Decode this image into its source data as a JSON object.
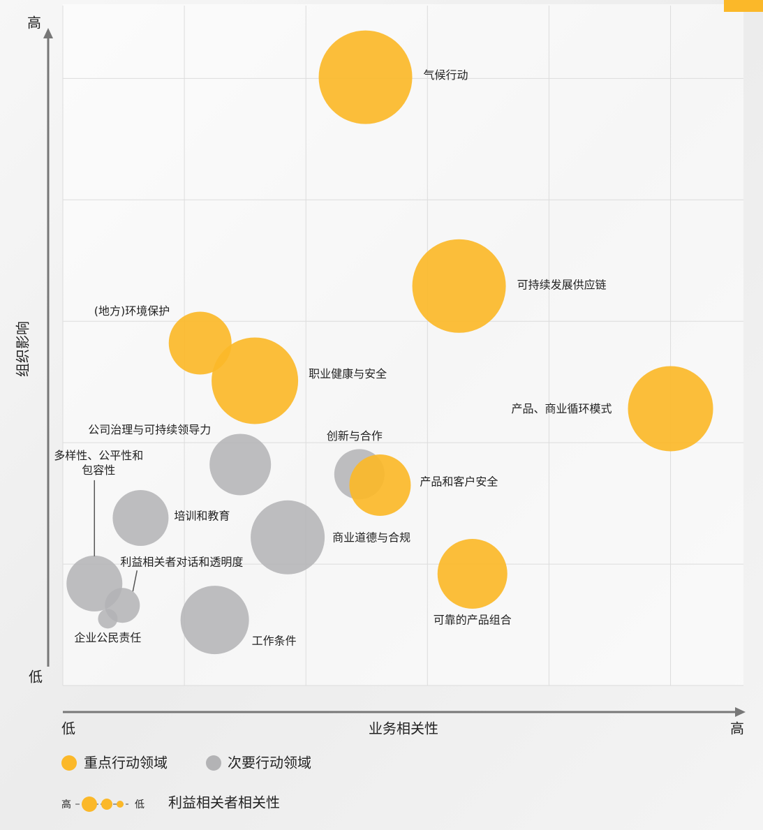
{
  "chart_data": {
    "type": "bubble",
    "x_label": "业务相关性",
    "y_label": "组织影响",
    "x_low": "低",
    "x_high": "高",
    "y_low": "低",
    "y_high": "高",
    "xlim": [
      0,
      5.6
    ],
    "ylim": [
      0,
      5.6
    ],
    "xticks": [
      0,
      1,
      2,
      3,
      4,
      5
    ],
    "yticks": [
      0,
      1,
      2,
      3,
      4,
      5
    ],
    "grid": true,
    "series": [
      {
        "name": "次要行动领域",
        "color": "#b3b3b5",
        "labels": [
          "公司治理与可持续领导力",
          "创新与合作",
          "培训和教育",
          "商业道德与合规",
          "多样性、公平性和包容性",
          "利益相关者对话和透明度",
          "企业公民责任",
          "工作条件"
        ],
        "x": [
          1.46,
          2.44,
          0.64,
          1.85,
          0.26,
          0.49,
          0.37,
          1.25
        ],
        "values": [
          1.82,
          1.74,
          1.38,
          1.22,
          0.84,
          0.66,
          0.55,
          0.54
        ],
        "size": [
          44,
          36,
          40,
          53,
          40,
          25,
          14,
          49
        ]
      },
      {
        "name": "重点行动领域",
        "color": "#fbb829",
        "labels": [
          "气候行动",
          "可持续发展供应链",
          "(地方)环境保护",
          "职业健康与安全",
          "产品、商业循环模式",
          "产品和客户安全",
          "可靠的产品组合"
        ],
        "x": [
          2.49,
          3.26,
          1.13,
          1.58,
          5.0,
          2.61,
          3.37
        ],
        "values": [
          5.01,
          3.29,
          2.82,
          2.51,
          2.28,
          1.65,
          0.92
        ],
        "size": [
          67,
          67,
          45,
          62,
          61,
          44,
          50
        ]
      }
    ],
    "size_legend": {
      "high": "高",
      "low": "低",
      "title": "利益相关者相关性"
    }
  }
}
